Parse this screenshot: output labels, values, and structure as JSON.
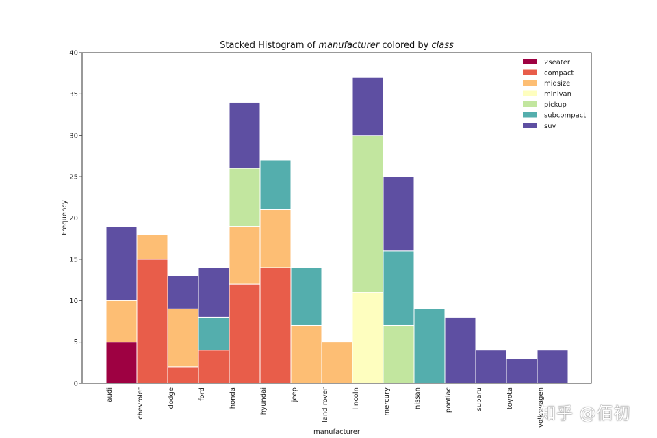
{
  "chart_data": {
    "type": "bar",
    "stacked": true,
    "title_parts": [
      "Stacked Histogram of ",
      "manufacturer",
      " colored by ",
      "class"
    ],
    "xlabel": "manufacturer",
    "ylabel": "Frequency",
    "ylim": [
      0,
      40
    ],
    "yticks": [
      0,
      5,
      10,
      15,
      20,
      25,
      30,
      35,
      40
    ],
    "grid": false,
    "legend_position": "top-right",
    "categories": [
      "audi",
      "chevrolet",
      "dodge",
      "ford",
      "honda",
      "hyundai",
      "jeep",
      "land rover",
      "lincoln",
      "mercury",
      "nissan",
      "pontiac",
      "subaru",
      "toyota",
      "volkswagen"
    ],
    "series": [
      {
        "name": "2seater",
        "color": "#9e0142",
        "values": [
          5,
          0,
          0,
          0,
          0,
          0,
          0,
          0,
          0,
          0,
          0,
          0,
          0,
          0,
          0
        ]
      },
      {
        "name": "compact",
        "color": "#e85d4a",
        "values": [
          0,
          15,
          2,
          4,
          12,
          14,
          0,
          0,
          0,
          0,
          0,
          0,
          0,
          0,
          0
        ]
      },
      {
        "name": "midsize",
        "color": "#fdbe74",
        "values": [
          5,
          3,
          7,
          0,
          7,
          7,
          7,
          5,
          0,
          0,
          0,
          0,
          0,
          0,
          0
        ]
      },
      {
        "name": "minivan",
        "color": "#fefebf",
        "values": [
          0,
          0,
          0,
          0,
          0,
          0,
          0,
          0,
          11,
          0,
          0,
          0,
          0,
          0,
          0
        ]
      },
      {
        "name": "pickup",
        "color": "#c2e69f",
        "values": [
          0,
          0,
          0,
          0,
          7,
          0,
          0,
          0,
          19,
          7,
          0,
          0,
          0,
          0,
          0
        ]
      },
      {
        "name": "subcompact",
        "color": "#54aead",
        "values": [
          0,
          0,
          0,
          4,
          0,
          6,
          7,
          0,
          0,
          9,
          9,
          0,
          0,
          0,
          0
        ]
      },
      {
        "name": "suv",
        "color": "#5e4fa2",
        "values": [
          9,
          0,
          4,
          6,
          8,
          0,
          0,
          0,
          7,
          9,
          0,
          8,
          4,
          3,
          4
        ]
      }
    ]
  },
  "watermark": "知乎 @佰初"
}
